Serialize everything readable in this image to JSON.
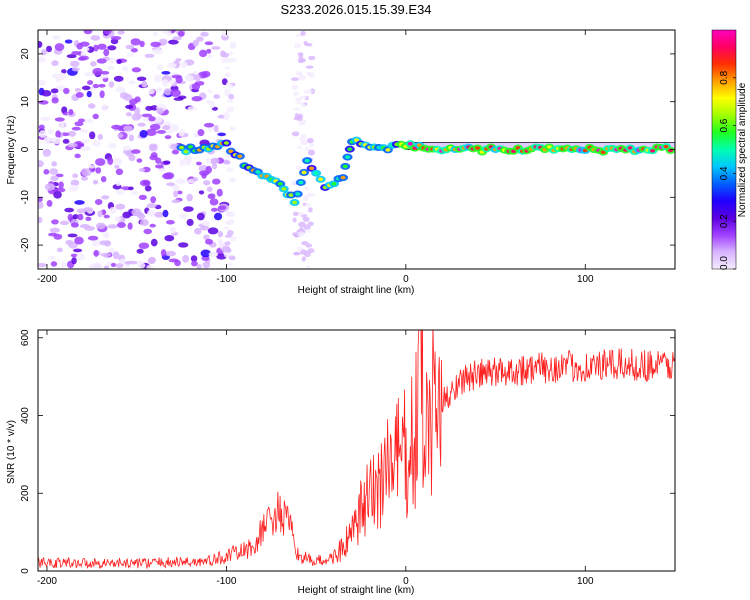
{
  "title": "S233.2026.015.15.39.E34",
  "chart_data": [
    {
      "type": "heatmap",
      "panel": "spectrogram",
      "xlabel": "Height of straight line (km)",
      "ylabel": "Frequency (Hz)",
      "xlim": [
        -205,
        150
      ],
      "ylim": [
        -25,
        25
      ],
      "xticks": [
        -200,
        -100,
        0,
        100
      ],
      "yticks": [
        -20,
        -10,
        0,
        10,
        20
      ],
      "colorbar": {
        "label": "Normalized spectral amplitude",
        "range": [
          0,
          1
        ],
        "ticks": [
          "0.0",
          "0.2",
          "0.4",
          "0.6",
          "0.8"
        ],
        "tick_values": [
          0.0,
          0.2,
          0.4,
          0.6,
          0.8
        ],
        "colors": [
          "#f4ecff",
          "#d8b4ff",
          "#a040ff",
          "#5a00e0",
          "#2000ff",
          "#0060ff",
          "#00c8ff",
          "#00ffb0",
          "#20ff20",
          "#a0ff00",
          "#ffff00",
          "#ffa000",
          "#ff3000",
          "#ff0060",
          "#ff00c0"
        ]
      },
      "features": [
        {
          "name": "noise-region",
          "x": [
            -205,
            -100
          ],
          "y": [
            -25,
            25
          ],
          "amplitude": 0.2
        },
        {
          "name": "signal-track",
          "points": [
            [
              -125,
              0
            ],
            [
              -115,
              0
            ],
            [
              -100,
              1
            ],
            [
              -90,
              -3
            ],
            [
              -80,
              -5
            ],
            [
              -70,
              -7
            ],
            [
              -62,
              -11
            ],
            [
              -55,
              -2
            ],
            [
              -45,
              -8
            ],
            [
              -35,
              -6
            ],
            [
              -30,
              2
            ],
            [
              -20,
              0
            ],
            [
              0,
              1
            ],
            [
              20,
              0
            ],
            [
              60,
              0
            ],
            [
              100,
              0
            ],
            [
              150,
              0
            ]
          ]
        },
        {
          "name": "reference-band",
          "x": [
            0,
            150
          ],
          "y": [
            0,
            1.5
          ]
        }
      ]
    },
    {
      "type": "line",
      "panel": "snr",
      "xlabel": "Height of straight line (km)",
      "ylabel": "SNR (10 * v/v)",
      "xlim": [
        -205,
        150
      ],
      "ylim": [
        0,
        620
      ],
      "xticks": [
        -200,
        -100,
        0,
        100
      ],
      "yticks": [
        0,
        200,
        400,
        600
      ],
      "color": "#ff2020",
      "series": [
        {
          "name": "SNR",
          "x": [
            -205,
            -150,
            -110,
            -95,
            -85,
            -78,
            -72,
            -66,
            -60,
            -52,
            -42,
            -36,
            -30,
            -25,
            -18,
            -12,
            -5,
            0,
            5,
            9,
            10,
            12,
            18,
            25,
            30,
            40,
            55,
            70,
            85,
            100,
            120,
            150
          ],
          "values": [
            22,
            20,
            25,
            45,
            60,
            120,
            150,
            130,
            40,
            25,
            30,
            55,
            90,
            150,
            200,
            260,
            290,
            300,
            320,
            600,
            250,
            380,
            420,
            460,
            490,
            505,
            515,
            520,
            525,
            525,
            530,
            530
          ]
        }
      ]
    }
  ]
}
